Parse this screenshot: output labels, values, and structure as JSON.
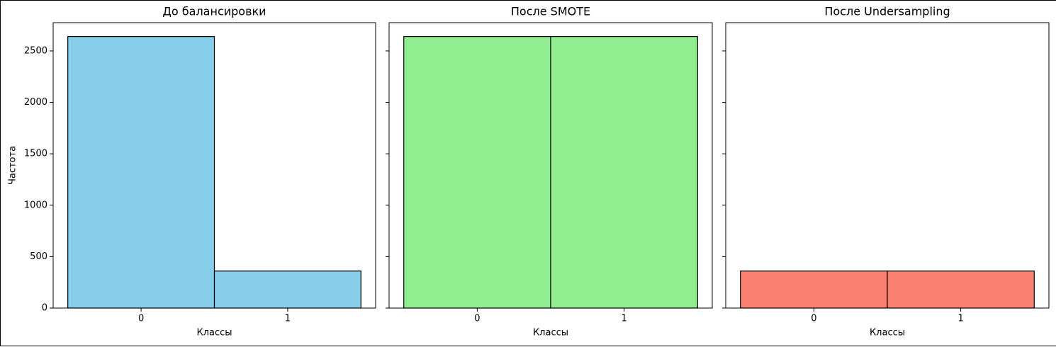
{
  "chart_data": [
    {
      "type": "histogram",
      "title": "До балансировки",
      "xlabel": "Классы",
      "ylabel": "Частота",
      "bins": [
        -0.5,
        0.5,
        1.5
      ],
      "counts": [
        2640,
        360
      ],
      "color": "#87ceeb",
      "xlim": [
        -0.6,
        1.6
      ],
      "xticks": [
        0,
        1
      ],
      "ylim": [
        0,
        2775
      ],
      "yticks": [
        0,
        500,
        1000,
        1500,
        2000,
        2500
      ]
    },
    {
      "type": "histogram",
      "title": "После SMOTE",
      "xlabel": "Классы",
      "bins": [
        -0.5,
        0.5,
        1.5
      ],
      "counts": [
        2640,
        2640
      ],
      "color": "#90ee90",
      "xlim": [
        -0.6,
        1.6
      ],
      "xticks": [
        0,
        1
      ],
      "ylim": [
        0,
        2775
      ]
    },
    {
      "type": "histogram",
      "title": "После Undersampling",
      "xlabel": "Классы",
      "bins": [
        -0.5,
        0.5,
        1.5
      ],
      "counts": [
        360,
        360
      ],
      "color": "#fa8072",
      "xlim": [
        -0.6,
        1.6
      ],
      "xticks": [
        0,
        1
      ],
      "ylim": [
        0,
        2775
      ]
    }
  ]
}
